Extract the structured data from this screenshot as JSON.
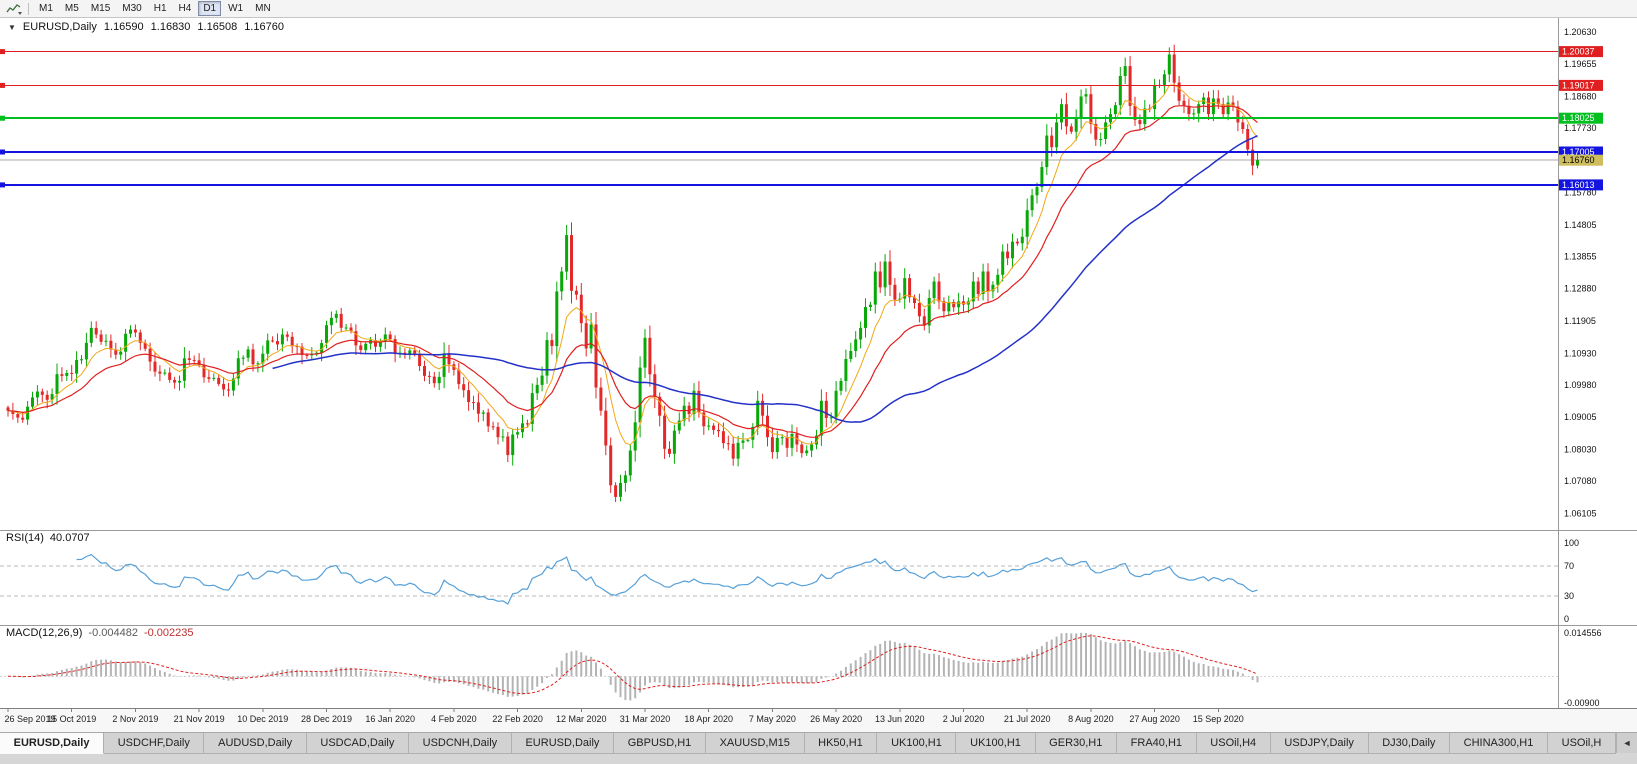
{
  "toolbar": {
    "timeframes": [
      "M1",
      "M5",
      "M15",
      "M30",
      "H1",
      "H4",
      "D1",
      "W1",
      "MN"
    ],
    "active_timeframe": "D1"
  },
  "chart": {
    "symbol": "EURUSD,Daily",
    "collapse_glyph": "▼",
    "ohlc": {
      "open": "1.16590",
      "high": "1.16830",
      "low": "1.16508",
      "close": "1.16760"
    },
    "price_scale": [
      "1.20630",
      "1.19655",
      "1.18680",
      "1.17730",
      "1.16755",
      "1.15780",
      "1.14805",
      "1.13855",
      "1.12880",
      "1.11905",
      "1.10930",
      "1.09980",
      "1.09005",
      "1.08030",
      "1.07080",
      "1.06105"
    ],
    "hlines": [
      {
        "price": 1.20037,
        "label": "1.20037",
        "color": "#e02020",
        "width": 1
      },
      {
        "price": 1.19017,
        "label": "1.19017",
        "color": "#e02020",
        "width": 1
      },
      {
        "price": 1.18025,
        "label": "1.18025",
        "color": "#00c020",
        "width": 2
      },
      {
        "price": 1.17005,
        "label": "1.17005",
        "color": "#1414e0",
        "width": 2
      },
      {
        "price": 1.16013,
        "label": "1.16013",
        "color": "#1414e0",
        "width": 2
      }
    ],
    "bid": {
      "price": 1.1676,
      "label": "1.16760",
      "box_color": "#cdbd5e",
      "text_color": "#000000",
      "line_color": "#a8a8a8"
    }
  },
  "chart_data": {
    "type": "candlestick",
    "title": "EURUSD Daily",
    "symbol": "EURUSD",
    "timeframe": "Daily",
    "ylim": [
      1.056,
      1.2105
    ],
    "candles_per_label": 13,
    "x_labels": [
      "26 Sep 2019",
      "15 Oct 2019",
      "2 Nov 2019",
      "21 Nov 2019",
      "10 Dec 2019",
      "28 Dec 2019",
      "16 Jan 2020",
      "4 Feb 2020",
      "22 Feb 2020",
      "12 Mar 2020",
      "31 Mar 2020",
      "18 Apr 2020",
      "7 May 2020",
      "26 May 2020",
      "13 Jun 2020",
      "2 Jul 2020",
      "21 Jul 2020",
      "8 Aug 2020",
      "27 Aug 2020",
      "15 Sep 2020"
    ],
    "closes": [
      1.092,
      1.091,
      1.0899,
      1.0893,
      1.0932,
      1.096,
      1.0978,
      1.0968,
      1.0953,
      1.097,
      1.103,
      1.1025,
      1.1034,
      1.1032,
      1.1073,
      1.1075,
      1.1125,
      1.117,
      1.115,
      1.1128,
      1.1131,
      1.1105,
      1.1089,
      1.1098,
      1.1152,
      1.1165,
      1.1156,
      1.1125,
      1.1107,
      1.1068,
      1.1038,
      1.1032,
      1.1035,
      1.1013,
      1.1005,
      1.101,
      1.1078,
      1.1073,
      1.1072,
      1.1058,
      1.1021,
      1.1016,
      1.1019,
      1.1001,
      1.0984,
      1.0981,
      1.1017,
      1.1078,
      1.108,
      1.1105,
      1.106,
      1.1063,
      1.1092,
      1.1132,
      1.113,
      1.112,
      1.115,
      1.1143,
      1.1115,
      1.1113,
      1.1088,
      1.1087,
      1.1091,
      1.1095,
      1.1124,
      1.1178,
      1.12,
      1.1212,
      1.117,
      1.1171,
      1.116,
      1.1117,
      1.1103,
      1.1122,
      1.1133,
      1.1113,
      1.1128,
      1.115,
      1.1136,
      1.1091,
      1.1095,
      1.1089,
      1.1102,
      1.1092,
      1.1055,
      1.1025,
      1.1023,
      1.1003,
      1.1022,
      1.1093,
      1.106,
      1.1043,
      1.1,
      1.0982,
      1.0946,
      1.0945,
      1.0911,
      1.0915,
      1.0873,
      1.0871,
      1.084,
      1.0842,
      1.0786,
      1.0848,
      1.0855,
      1.0882,
      1.088,
      1.0973,
      1.0998,
      1.1026,
      1.1133,
      1.1115,
      1.128,
      1.134,
      1.145,
      1.1282,
      1.127,
      1.1184,
      1.1108,
      1.118,
      1.099,
      1.092,
      1.0815,
      1.0695,
      1.066,
      1.0702,
      1.0725,
      1.08,
      1.0885,
      1.105,
      1.114,
      1.103,
      1.0962,
      1.0905,
      1.0805,
      1.079,
      1.086,
      1.089,
      1.0935,
      1.091,
      1.098,
      1.0915,
      1.0873,
      1.0875,
      1.0862,
      1.0858,
      1.0822,
      1.082,
      1.0775,
      1.0823,
      1.083,
      1.0832,
      1.0871,
      1.095,
      1.0905,
      1.084,
      1.0795,
      1.0838,
      1.084,
      1.0808,
      1.085,
      1.0818,
      1.0792,
      1.08,
      1.0818,
      1.0845,
      1.095,
      1.0898,
      1.09,
      1.098,
      1.101,
      1.1076,
      1.11,
      1.1135,
      1.117,
      1.1233,
      1.124,
      1.134,
      1.1292,
      1.137,
      1.13,
      1.1255,
      1.1258,
      1.132,
      1.1262,
      1.1245,
      1.1205,
      1.1177,
      1.126,
      1.131,
      1.125,
      1.122,
      1.1248,
      1.1232,
      1.125,
      1.124,
      1.125,
      1.131,
      1.1272,
      1.134,
      1.128,
      1.13,
      1.133,
      1.14,
      1.138,
      1.143,
      1.1425,
      1.1445,
      1.1525,
      1.157,
      1.1595,
      1.1655,
      1.175,
      1.1715,
      1.179,
      1.1845,
      1.1778,
      1.1762,
      1.1802,
      1.1868,
      1.1875,
      1.1785,
      1.1738,
      1.174,
      1.179,
      1.1815,
      1.1842,
      1.193,
      1.196,
      1.184,
      1.1797,
      1.1785,
      1.1832,
      1.183,
      1.19,
      1.1903,
      1.1935,
      1.1995,
      1.191,
      1.1855,
      1.184,
      1.1815,
      1.1817,
      1.1845,
      1.1865,
      1.1815,
      1.1862,
      1.1845,
      1.1815,
      1.185,
      1.1838,
      1.179,
      1.177,
      1.1708,
      1.166,
      1.1676
    ],
    "up_color": "#07a807",
    "down_color": "#e22828",
    "overlays": [
      {
        "type": "ema",
        "period": 8,
        "color": "#f0a818",
        "width": 1
      },
      {
        "type": "ema",
        "period": 20,
        "color": "#e02020",
        "width": 1.2
      },
      {
        "type": "sma",
        "period": 55,
        "color": "#2432c8",
        "width": 1.5
      }
    ]
  },
  "rsi": {
    "label": "RSI(14)",
    "value": "40.0707",
    "period": 14,
    "color": "#56a0d8",
    "levels": [
      {
        "value": 100,
        "label": "100"
      },
      {
        "value": 70,
        "label": "70",
        "dashed": true
      },
      {
        "value": 30,
        "label": "30",
        "dashed": true
      },
      {
        "value": 0,
        "label": "0"
      }
    ]
  },
  "macd": {
    "label": "MACD(12,26,9)",
    "value_main": "-0.004482",
    "value_signal": "-0.002235",
    "fast": 12,
    "slow": 26,
    "signal": 9,
    "bar_color": "#b4b4b4",
    "signal_color": "#e02020",
    "scale_top": "0.014556",
    "scale_bottom": "-0.00900",
    "vmax": 0.014556,
    "vmin": -0.009
  },
  "tabs": {
    "items": [
      "EURUSD,Daily",
      "USDCHF,Daily",
      "AUDUSD,Daily",
      "USDCAD,Daily",
      "USDCNH,Daily",
      "EURUSD,Daily",
      "GBPUSD,H1",
      "XAUUSD,M15",
      "HK50,H1",
      "UK100,H1",
      "UK100,H1",
      "GER30,H1",
      "FRA40,H1",
      "USOil,H4",
      "USDJPY,Daily",
      "DJ30,Daily",
      "CHINA300,H1",
      "USOil,H"
    ],
    "active_index": 0,
    "scroll_left_glyph": "◄"
  }
}
